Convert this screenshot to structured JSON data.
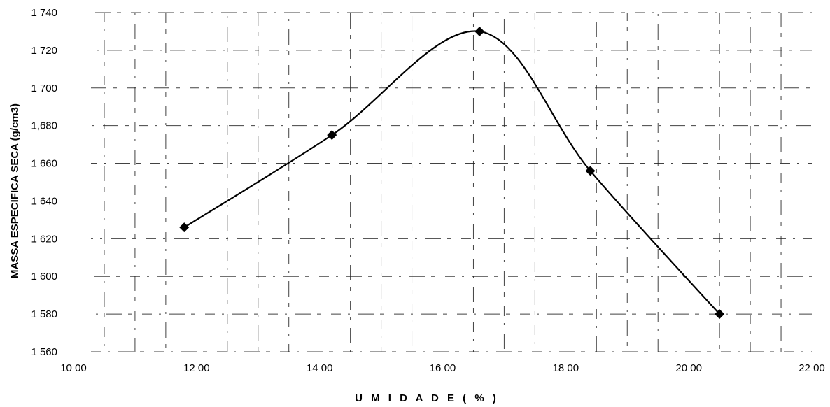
{
  "chart_data": {
    "type": "line",
    "title": "",
    "xlabel": "U M I D A D E ( % )",
    "ylabel": "MASSA ESPECIFICA SECA (g/cm3)",
    "xlim": [
      10,
      22
    ],
    "ylim": [
      1.56,
      1.74
    ],
    "x_ticks": [
      {
        "value": 10,
        "label": "10 00"
      },
      {
        "value": 12,
        "label": "12 00"
      },
      {
        "value": 14,
        "label": "14 00"
      },
      {
        "value": 16,
        "label": "16 00"
      },
      {
        "value": 18,
        "label": "18 00"
      },
      {
        "value": 20,
        "label": "20 00"
      },
      {
        "value": 22,
        "label": "22 00"
      }
    ],
    "y_ticks": [
      {
        "value": 1.56,
        "label": "1 560"
      },
      {
        "value": 1.58,
        "label": "1 580"
      },
      {
        "value": 1.6,
        "label": "1 600"
      },
      {
        "value": 1.62,
        "label": "1 620"
      },
      {
        "value": 1.64,
        "label": "1 640"
      },
      {
        "value": 1.66,
        "label": "1 660"
      },
      {
        "value": 1.68,
        "label": "1,680"
      },
      {
        "value": 1.7,
        "label": "1 700"
      },
      {
        "value": 1.72,
        "label": "1 720"
      },
      {
        "value": 1.74,
        "label": "1 740"
      }
    ],
    "grid": true,
    "series": [
      {
        "x": [
          11.8,
          14.2,
          16.6,
          18.4,
          20.5
        ],
        "y": [
          1.626,
          1.675,
          1.73,
          1.656,
          1.58
        ],
        "marker": "diamond",
        "smooth": true,
        "color": "#000000"
      }
    ]
  }
}
